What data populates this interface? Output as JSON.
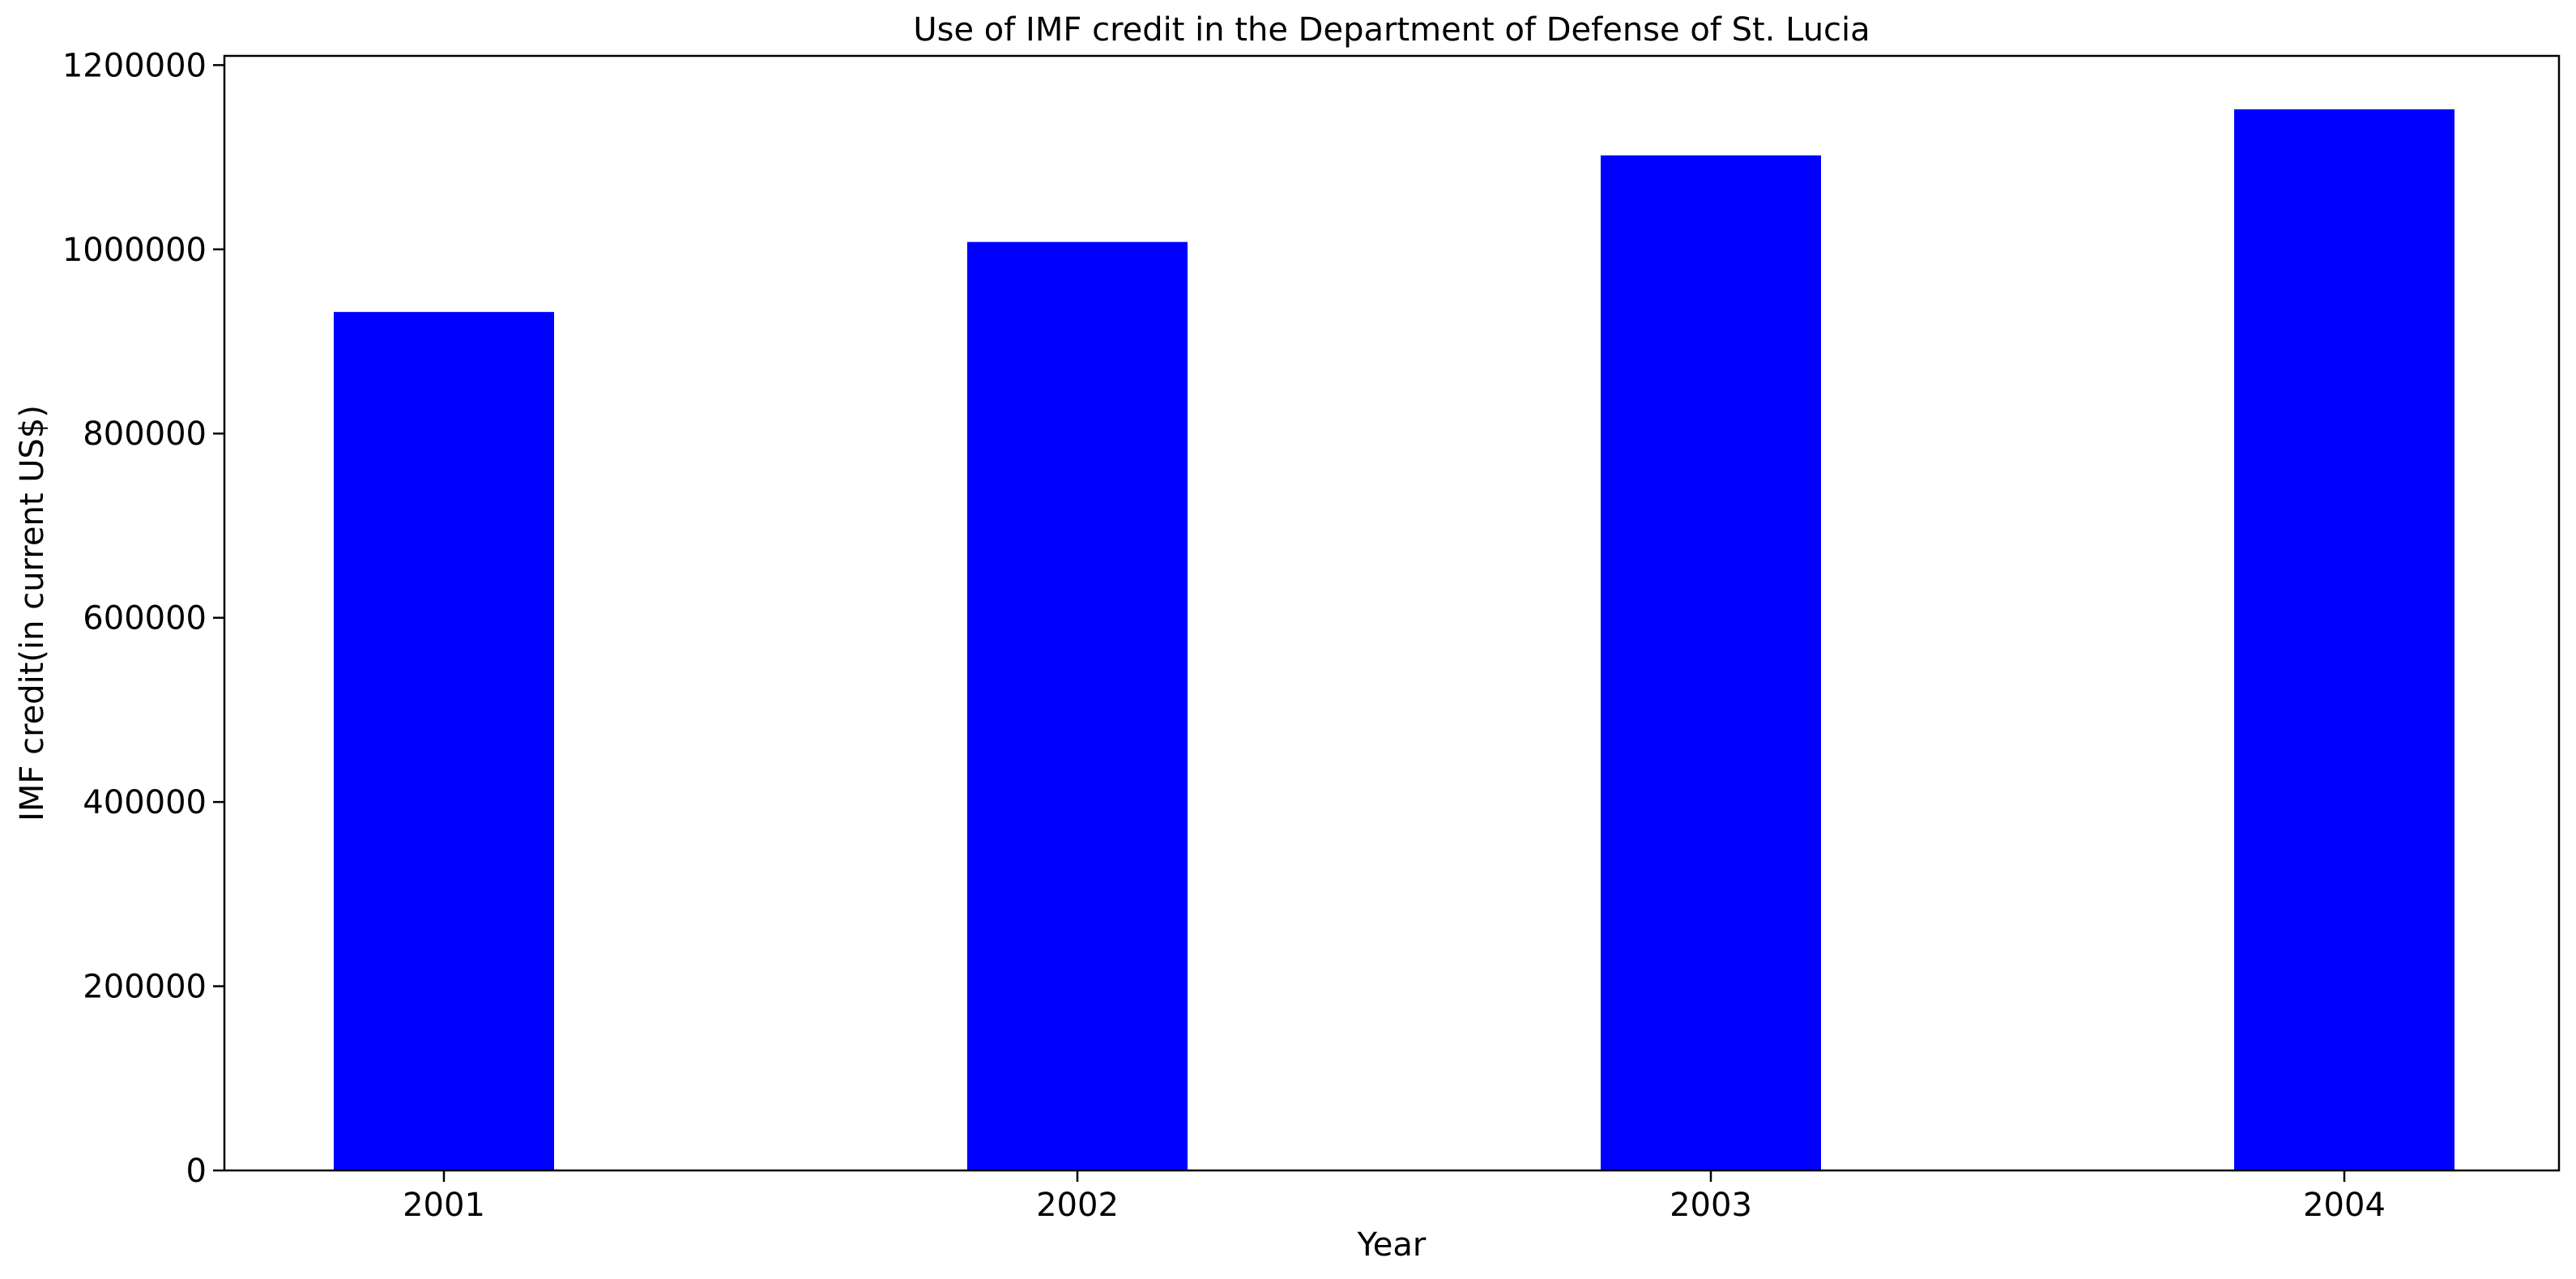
{
  "chart_data": {
    "type": "bar",
    "title": "Use of IMF credit in the Department of Defense of St. Lucia",
    "xlabel": "Year",
    "ylabel": "IMF credit(in current US$)",
    "categories": [
      "2001",
      "2002",
      "2003",
      "2004"
    ],
    "series": [
      {
        "values": [
          932000,
          1008000,
          1102000,
          1152000
        ]
      }
    ],
    "ylim": [
      0,
      1210000
    ],
    "yticks": [
      0,
      200000,
      400000,
      600000,
      800000,
      1000000,
      1200000
    ],
    "ytick_labels": [
      "0",
      "200000",
      "400000",
      "600000",
      "800000",
      "1000000",
      "1200000"
    ],
    "grid": false,
    "legend": "none",
    "colors": {
      "bar": "#0000ff",
      "axes": "#000000",
      "background": "#ffffff"
    }
  }
}
